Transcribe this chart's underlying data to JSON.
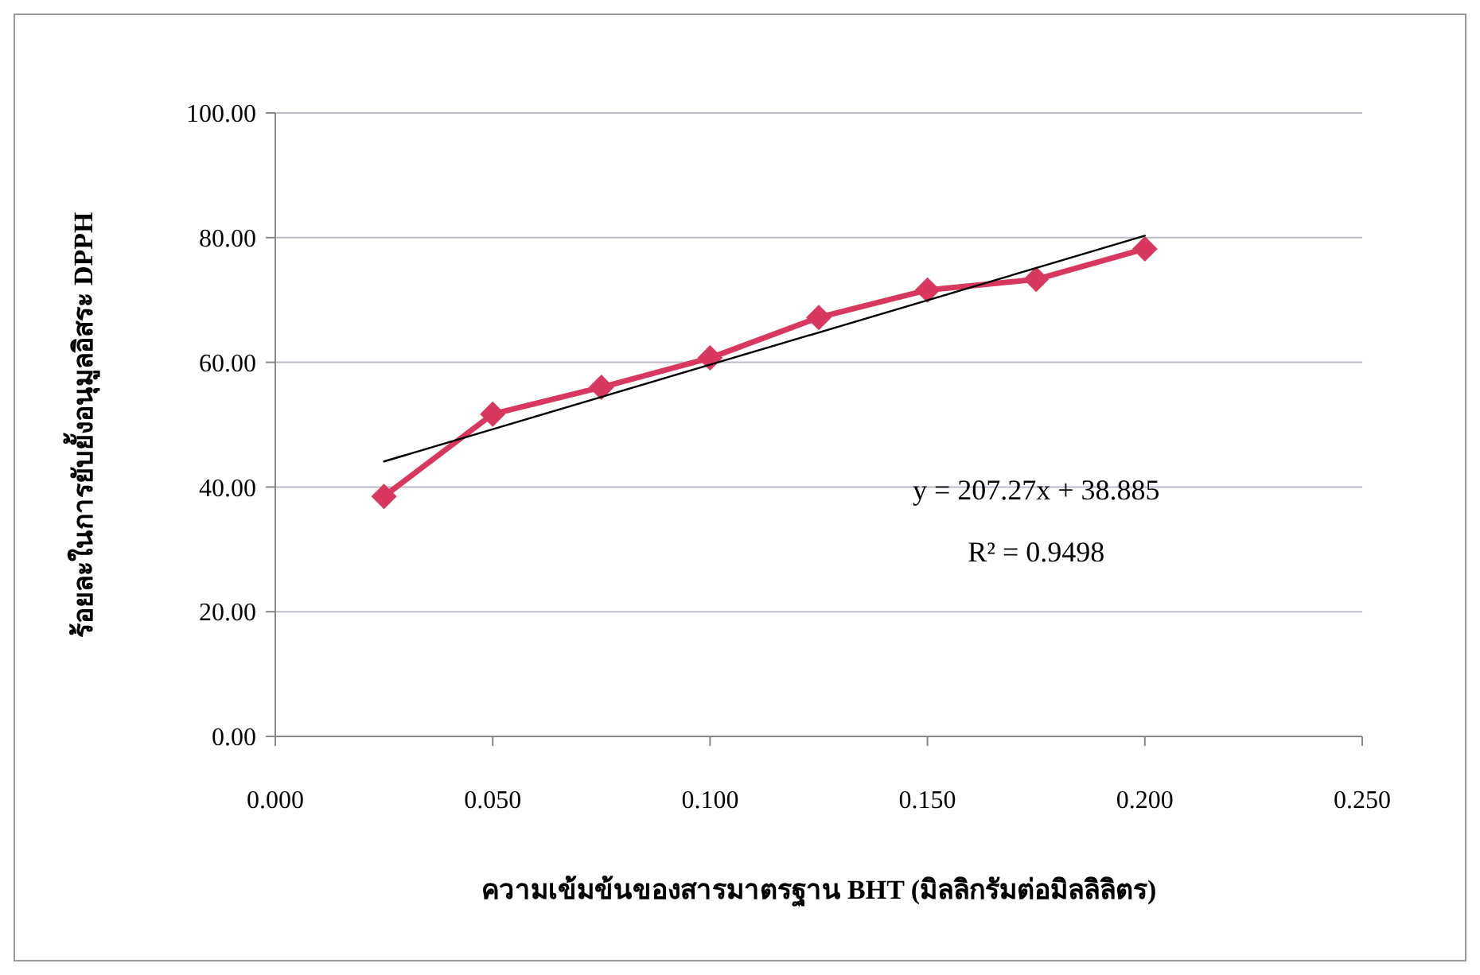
{
  "chart_data": {
    "type": "line",
    "xlabel": "ความเข้มข้นของสารมาตรฐาน BHT (มิลลิกรัมต่อมิลลิลิตร)",
    "ylabel": "ร้อยละในการยับยั้งอนุมูลอิสระ DPPH",
    "x": [
      0.025,
      0.05,
      0.075,
      0.1,
      0.125,
      0.15,
      0.175,
      0.2
    ],
    "series": [
      {
        "color": "#d9385e",
        "values": [
          38.5,
          51.7,
          56.0,
          60.7,
          67.2,
          71.6,
          73.3,
          78.2
        ],
        "marker": "diamond"
      },
      {
        "type": "line",
        "color": "#000000",
        "x": [
          0.025,
          0.2
        ],
        "values": [
          44.1,
          80.3
        ],
        "marker": "none"
      }
    ],
    "xlim": [
      0,
      0.25
    ],
    "xticks": [
      {
        "value": 0,
        "label": "0.000"
      },
      {
        "value": 0.05,
        "label": "0.050"
      },
      {
        "value": 0.1,
        "label": "0.100"
      },
      {
        "value": 0.15,
        "label": "0.150"
      },
      {
        "value": 0.2,
        "label": "0.200"
      },
      {
        "value": 0.25,
        "label": "0.250"
      }
    ],
    "ylim": [
      0,
      100
    ],
    "yticks": [
      {
        "value": 0,
        "label": "0.00"
      },
      {
        "value": 20,
        "label": "20.00"
      },
      {
        "value": 40,
        "label": "40.00"
      },
      {
        "value": 60,
        "label": "60.00"
      },
      {
        "value": 80,
        "label": "80.00"
      },
      {
        "value": 100,
        "label": "100.00"
      }
    ],
    "grid": "y",
    "annotations": [
      "y = 207.27x + 38.885",
      "R² = 0.9498"
    ]
  }
}
